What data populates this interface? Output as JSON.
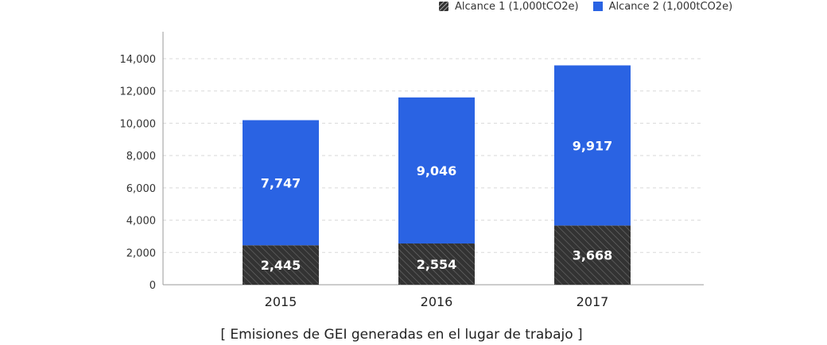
{
  "legend": {
    "items": [
      {
        "label": "Alcance 1 (1,000tCO2e)",
        "color": "#333333",
        "pattern": "hatched"
      },
      {
        "label": "Alcance 2 (1,000tCO2e)",
        "color": "#2a63e3",
        "pattern": "solid"
      }
    ]
  },
  "caption": "[ Emisiones de GEI generadas en el lugar de trabajo ]",
  "chart_data": {
    "type": "bar",
    "stacked": true,
    "categories": [
      "2015",
      "2016",
      "2017"
    ],
    "series": [
      {
        "name": "Alcance 1 (1,000tCO2e)",
        "values": [
          2445,
          2554,
          3668
        ],
        "labels": [
          "2,445",
          "2,554",
          "3,668"
        ],
        "color": "#333333"
      },
      {
        "name": "Alcance 2 (1,000tCO2e)",
        "values": [
          7747,
          9046,
          9917
        ],
        "labels": [
          "7,747",
          "9,046",
          "9,917"
        ],
        "color": "#2a63e3"
      }
    ],
    "y_ticks": [
      "0",
      "2,000",
      "4,000",
      "6,000",
      "8,000",
      "10,000",
      "12,000",
      "14,000"
    ],
    "ylim": [
      0,
      15000
    ],
    "grid": true,
    "legend_position": "top-right",
    "title": "",
    "xlabel": "",
    "ylabel": ""
  }
}
